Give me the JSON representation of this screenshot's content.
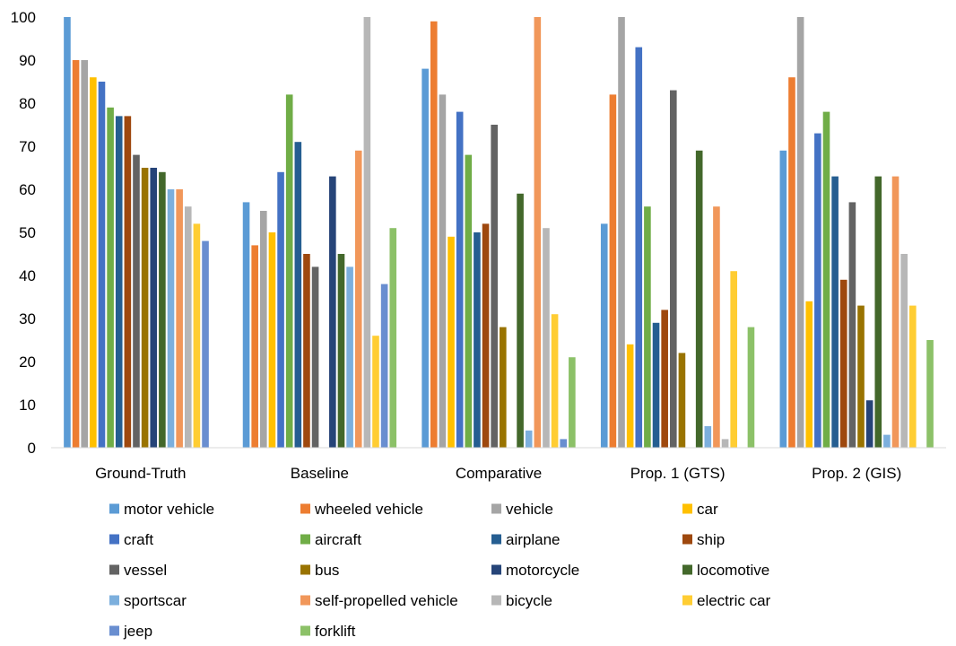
{
  "chart_data": {
    "type": "bar",
    "title": "",
    "xlabel": "",
    "ylabel": "",
    "ylim": [
      0,
      100
    ],
    "yticks": [
      0,
      10,
      20,
      30,
      40,
      50,
      60,
      70,
      80,
      90,
      100
    ],
    "grid": false,
    "legend_position": "bottom",
    "categories": [
      "Ground-Truth",
      "Baseline",
      "Comparative",
      "Prop. 1 (GTS)",
      "Prop. 2 (GIS)"
    ],
    "series": [
      {
        "name": "motor vehicle",
        "color": "#5B9BD5",
        "values": [
          100,
          57,
          88,
          52,
          69
        ]
      },
      {
        "name": "wheeled vehicle",
        "color": "#ED7D31",
        "values": [
          90,
          47,
          99,
          82,
          86
        ]
      },
      {
        "name": "vehicle",
        "color": "#A5A5A5",
        "values": [
          90,
          55,
          82,
          100,
          100
        ]
      },
      {
        "name": "car",
        "color": "#FFC000",
        "values": [
          86,
          50,
          49,
          24,
          34
        ]
      },
      {
        "name": "craft",
        "color": "#4472C4",
        "values": [
          85,
          64,
          78,
          93,
          73
        ]
      },
      {
        "name": "aircraft",
        "color": "#70AD47",
        "values": [
          79,
          82,
          68,
          56,
          78
        ]
      },
      {
        "name": "airplane",
        "color": "#255E91",
        "values": [
          77,
          71,
          50,
          29,
          63
        ]
      },
      {
        "name": "ship",
        "color": "#9E480E",
        "values": [
          77,
          45,
          52,
          32,
          39
        ]
      },
      {
        "name": "vessel",
        "color": "#636363",
        "values": [
          68,
          42,
          75,
          83,
          57
        ]
      },
      {
        "name": "bus",
        "color": "#997300",
        "values": [
          65,
          0,
          28,
          22,
          33
        ]
      },
      {
        "name": "motorcycle",
        "color": "#264478",
        "values": [
          65,
          63,
          0,
          0,
          11
        ]
      },
      {
        "name": "locomotive",
        "color": "#43682B",
        "values": [
          64,
          45,
          59,
          69,
          63
        ]
      },
      {
        "name": "sportscar",
        "color": "#7CAFDD",
        "values": [
          60,
          42,
          4,
          5,
          3
        ]
      },
      {
        "name": "self-propelled vehicle",
        "color": "#F1975A",
        "values": [
          60,
          69,
          100,
          56,
          63
        ]
      },
      {
        "name": "bicycle",
        "color": "#B7B7B7",
        "values": [
          56,
          100,
          51,
          2,
          45
        ]
      },
      {
        "name": "electric car",
        "color": "#FFCD33",
        "values": [
          52,
          26,
          31,
          41,
          33
        ]
      },
      {
        "name": "jeep",
        "color": "#698ED0",
        "values": [
          48,
          38,
          2,
          0,
          0
        ]
      },
      {
        "name": "forklift",
        "color": "#8CC168",
        "values": [
          0,
          51,
          21,
          28,
          25
        ]
      }
    ]
  }
}
